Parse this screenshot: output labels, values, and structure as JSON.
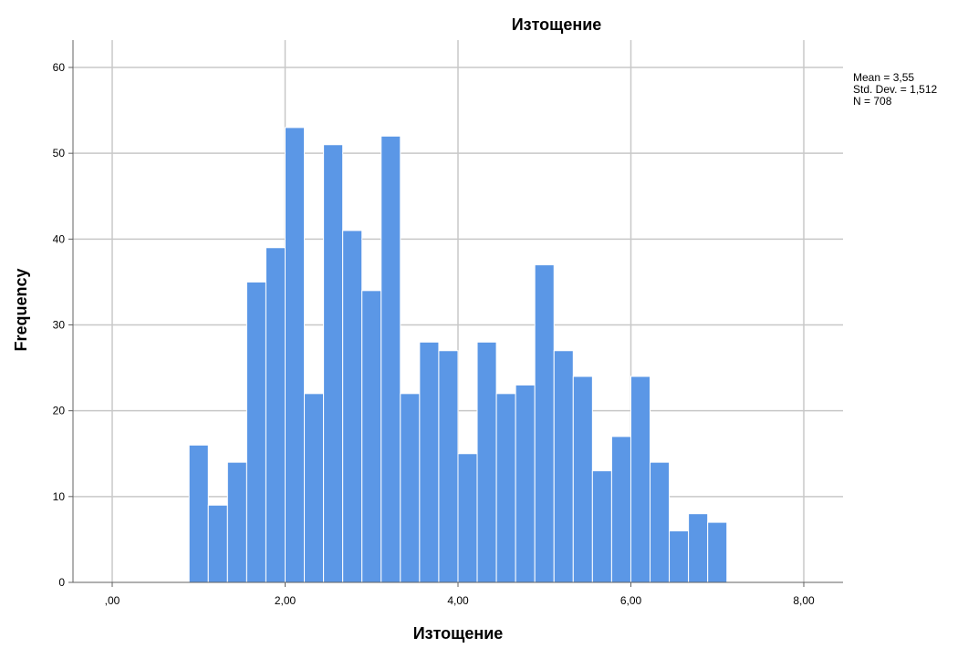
{
  "chart_data": {
    "type": "bar",
    "title": "Изтощение",
    "xlabel": "Изтощение",
    "ylabel": "Frequency",
    "xlim": [
      -0.2,
      8.2
    ],
    "ylim": [
      0,
      63
    ],
    "x_ticks": [
      {
        "value": 0,
        "label": ",00"
      },
      {
        "value": 2,
        "label": "2,00"
      },
      {
        "value": 4,
        "label": "4,00"
      },
      {
        "value": 6,
        "label": "6,00"
      },
      {
        "value": 8,
        "label": "8,00"
      }
    ],
    "y_ticks": [
      {
        "value": 0,
        "label": "0"
      },
      {
        "value": 10,
        "label": "10"
      },
      {
        "value": 20,
        "label": "20"
      },
      {
        "value": 30,
        "label": "30"
      },
      {
        "value": 40,
        "label": "40"
      },
      {
        "value": 50,
        "label": "50"
      },
      {
        "value": 60,
        "label": "60"
      }
    ],
    "bin_start": 0.889,
    "bin_width": 0.2222,
    "values": [
      16,
      9,
      14,
      35,
      39,
      53,
      22,
      51,
      41,
      34,
      52,
      22,
      28,
      27,
      15,
      28,
      22,
      23,
      37,
      27,
      24,
      13,
      17,
      24,
      14,
      6,
      8,
      7
    ],
    "grid": true,
    "legend": "none",
    "bar_color": "#5b97e6",
    "stats": {
      "mean": "Mean = 3,55",
      "std_dev": "Std. Dev. = 1,512",
      "n": "N = 708"
    }
  }
}
